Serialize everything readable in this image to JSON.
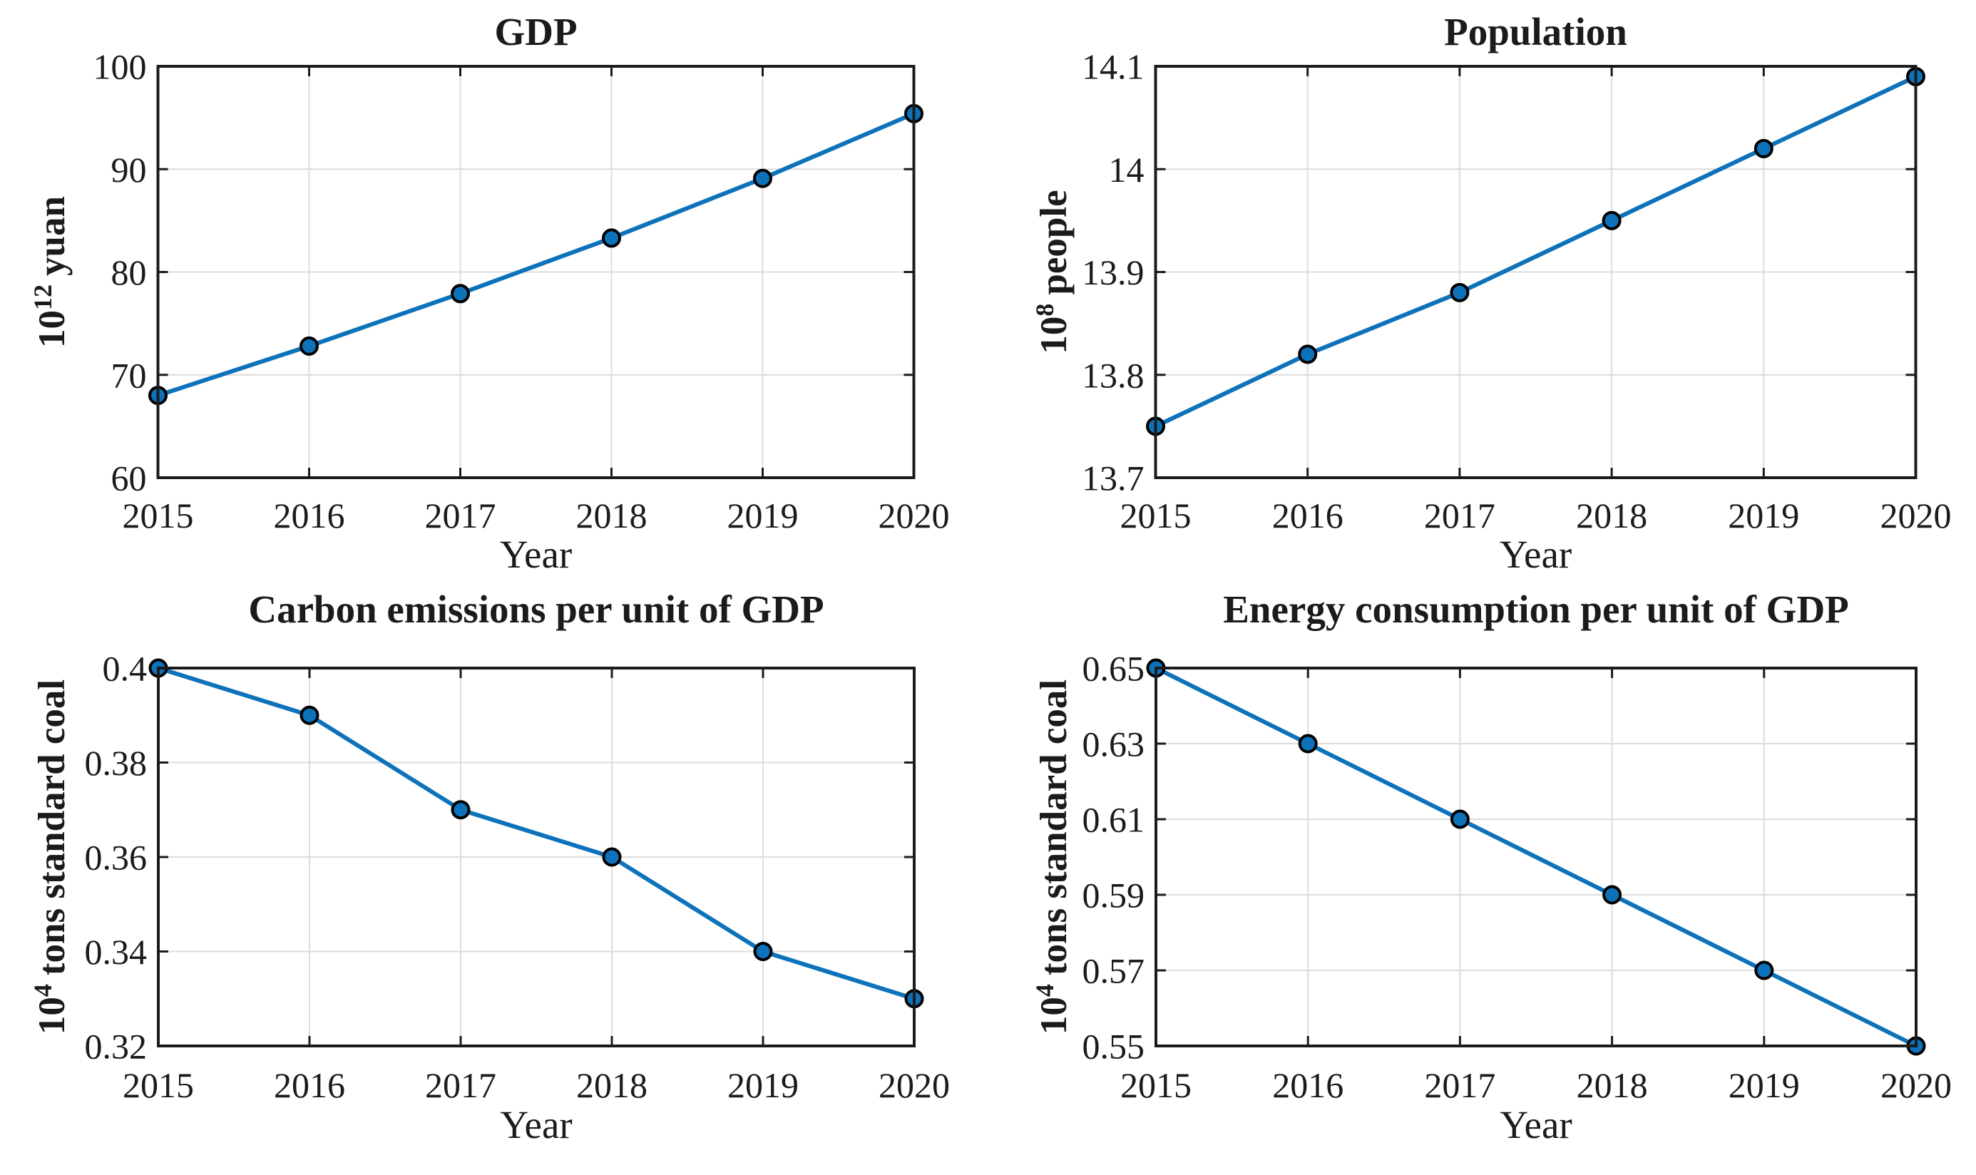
{
  "figure": {
    "background": "#ffffff",
    "accent_color": "#0d72ba",
    "axis_color": "#1b1b1b",
    "grid_color": "#dcdcdc",
    "marker_edge_color": "#000000"
  },
  "chart_data": [
    {
      "type": "line",
      "title": "GDP",
      "xlabel": "Year",
      "ylabel": {
        "base": "10",
        "exp": "12",
        "unit": "yuan"
      },
      "x": [
        2015,
        2016,
        2017,
        2018,
        2019,
        2020
      ],
      "values": [
        68.0,
        72.8,
        77.9,
        83.3,
        89.1,
        95.4
      ],
      "xlim": [
        2015,
        2020
      ],
      "ylim": [
        60,
        100
      ],
      "xticks": [
        2015,
        2016,
        2017,
        2018,
        2019,
        2020
      ],
      "xtick_labels": [
        "2015",
        "2016",
        "2017",
        "2018",
        "2019",
        "2020"
      ],
      "yticks": [
        60,
        70,
        80,
        90,
        100
      ],
      "ytick_labels": [
        "60",
        "70",
        "80",
        "90",
        "100"
      ],
      "grid": true,
      "legend": null,
      "line_color": "#0d72ba",
      "marker": "circle"
    },
    {
      "type": "line",
      "title": "Population",
      "xlabel": "Year",
      "ylabel": {
        "base": "10",
        "exp": "8",
        "unit": "people"
      },
      "x": [
        2015,
        2016,
        2017,
        2018,
        2019,
        2020
      ],
      "values": [
        13.75,
        13.82,
        13.88,
        13.95,
        14.02,
        14.09
      ],
      "xlim": [
        2015,
        2020
      ],
      "ylim": [
        13.7,
        14.1
      ],
      "xticks": [
        2015,
        2016,
        2017,
        2018,
        2019,
        2020
      ],
      "xtick_labels": [
        "2015",
        "2016",
        "2017",
        "2018",
        "2019",
        "2020"
      ],
      "yticks": [
        13.7,
        13.8,
        13.9,
        14,
        14.1
      ],
      "ytick_labels": [
        "13.7",
        "13.8",
        "13.9",
        "14",
        "14.1"
      ],
      "grid": true,
      "legend": null,
      "line_color": "#0d72ba",
      "marker": "circle"
    },
    {
      "type": "line",
      "title": "Carbon emissions per unit of GDP",
      "xlabel": "Year",
      "ylabel": {
        "base": "10",
        "exp": "4",
        "unit": "tons standard coal"
      },
      "x": [
        2015,
        2016,
        2017,
        2018,
        2019,
        2020
      ],
      "values": [
        0.4,
        0.39,
        0.37,
        0.36,
        0.34,
        0.33
      ],
      "xlim": [
        2015,
        2020
      ],
      "ylim": [
        0.32,
        0.4
      ],
      "xticks": [
        2015,
        2016,
        2017,
        2018,
        2019,
        2020
      ],
      "xtick_labels": [
        "2015",
        "2016",
        "2017",
        "2018",
        "2019",
        "2020"
      ],
      "yticks": [
        0.32,
        0.34,
        0.36,
        0.38,
        0.4
      ],
      "ytick_labels": [
        "0.32",
        "0.34",
        "0.36",
        "0.38",
        "0.4"
      ],
      "grid": true,
      "legend": null,
      "line_color": "#0d72ba",
      "marker": "circle"
    },
    {
      "type": "line",
      "title": "Energy consumption per unit of GDP",
      "xlabel": "Year",
      "ylabel": {
        "base": "10",
        "exp": "4",
        "unit": "tons standard coal"
      },
      "x": [
        2015,
        2016,
        2017,
        2018,
        2019,
        2020
      ],
      "values": [
        0.65,
        0.63,
        0.61,
        0.59,
        0.57,
        0.55
      ],
      "xlim": [
        2015,
        2020
      ],
      "ylim": [
        0.55,
        0.65
      ],
      "xticks": [
        2015,
        2016,
        2017,
        2018,
        2019,
        2020
      ],
      "xtick_labels": [
        "2015",
        "2016",
        "2017",
        "2018",
        "2019",
        "2020"
      ],
      "yticks": [
        0.55,
        0.57,
        0.59,
        0.61,
        0.63,
        0.65
      ],
      "ytick_labels": [
        "0.55",
        "0.57",
        "0.59",
        "0.61",
        "0.63",
        "0.65"
      ],
      "grid": true,
      "legend": null,
      "line_color": "#0d72ba",
      "marker": "circle"
    }
  ]
}
